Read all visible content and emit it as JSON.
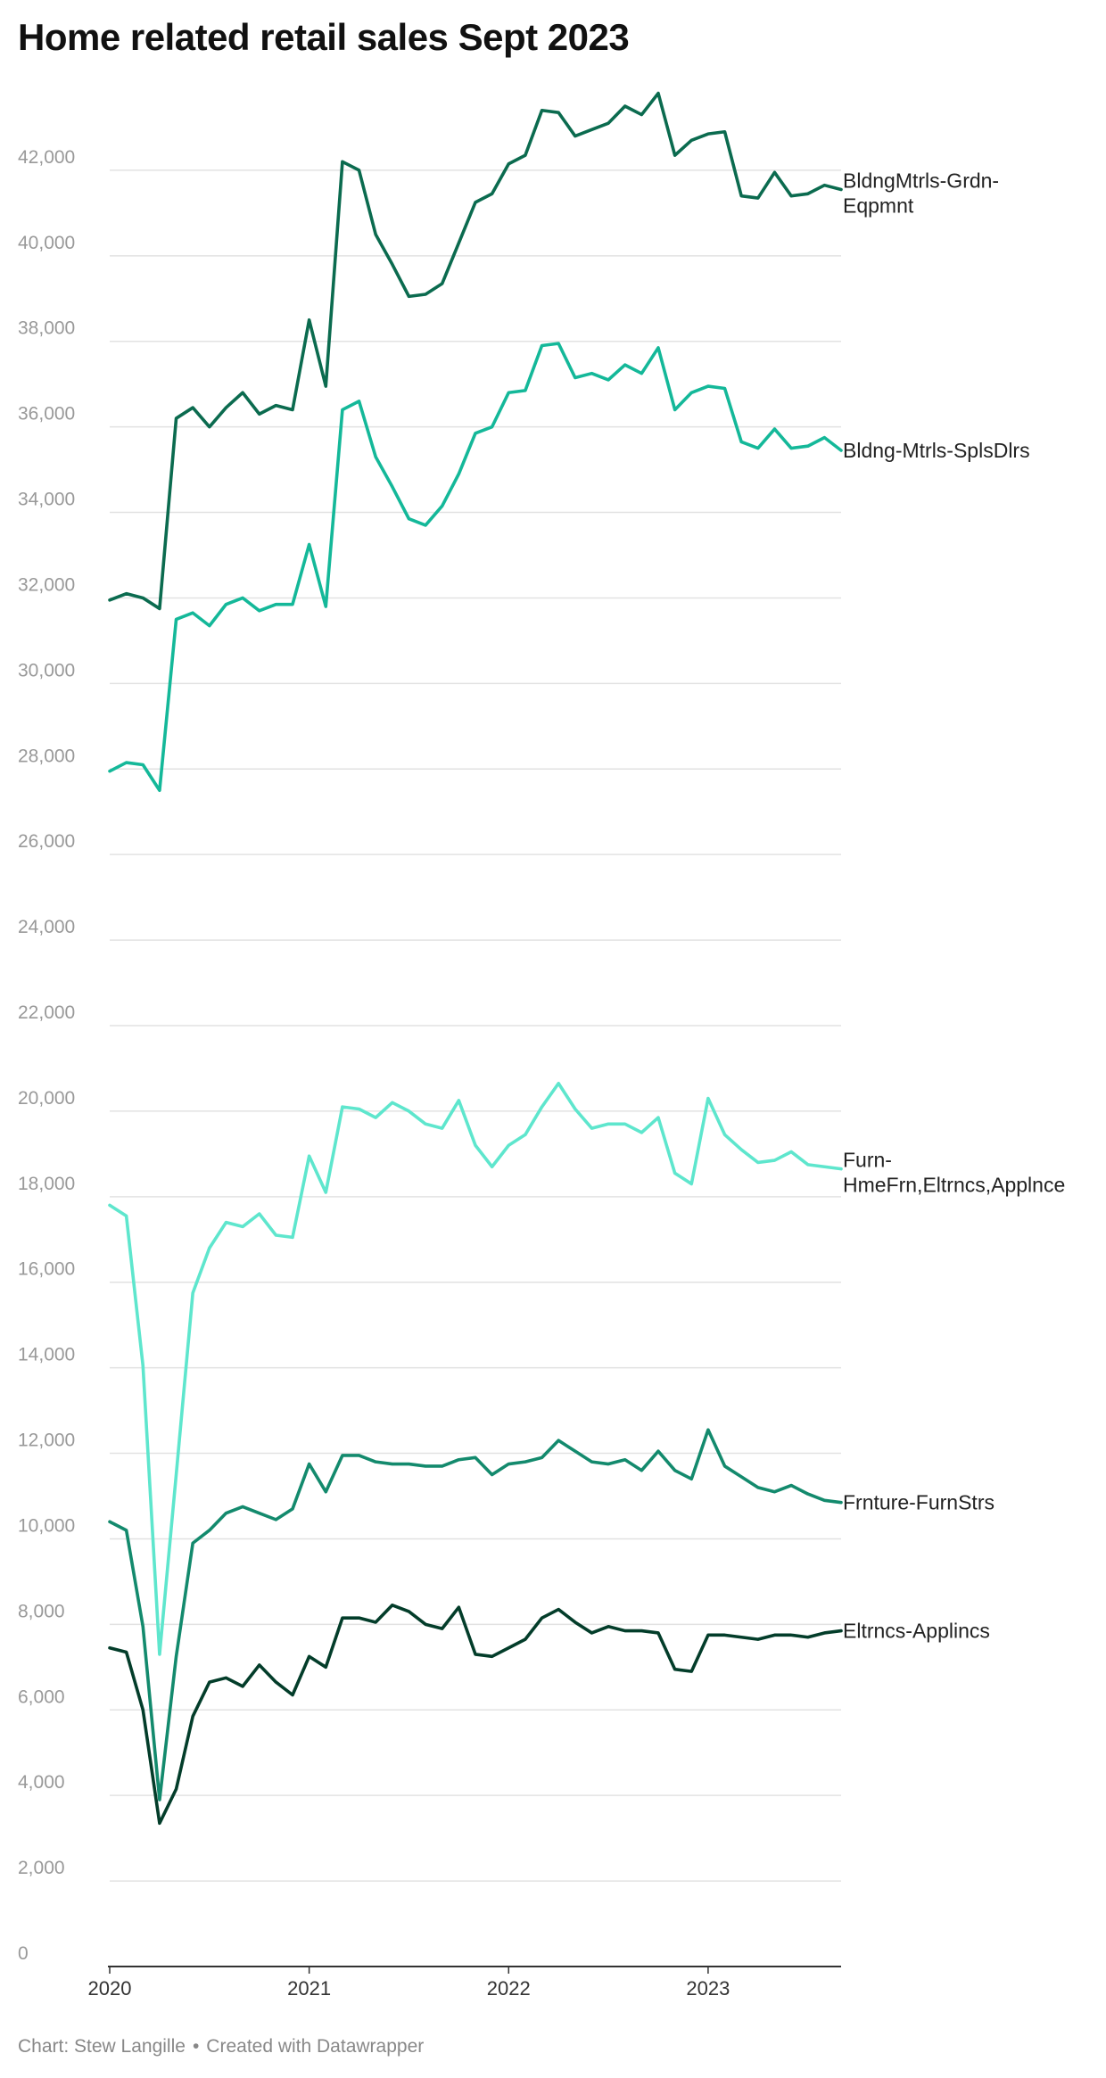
{
  "title": "Home related retail sales Sept 2023",
  "footer": {
    "source": "Chart: Stew Langille",
    "separator": "•",
    "credit": "Created with Datawrapper"
  },
  "chart_data": {
    "type": "line",
    "ylim": [
      0,
      44000
    ],
    "xlim": [
      "2020-01",
      "2023-09"
    ],
    "y_ticks": [
      0,
      2000,
      4000,
      6000,
      8000,
      10000,
      12000,
      14000,
      16000,
      18000,
      20000,
      22000,
      24000,
      26000,
      28000,
      30000,
      32000,
      34000,
      36000,
      38000,
      40000,
      42000
    ],
    "y_tick_labels": [
      "0",
      "2,000",
      "4,000",
      "6,000",
      "8,000",
      "10,000",
      "12,000",
      "14,000",
      "16,000",
      "18,000",
      "20,000",
      "22,000",
      "24,000",
      "26,000",
      "28,000",
      "30,000",
      "32,000",
      "34,000",
      "36,000",
      "38,000",
      "40,000",
      "42,000"
    ],
    "x_ticks": [
      "2020-01",
      "2021-01",
      "2022-01",
      "2023-01"
    ],
    "x_tick_labels": [
      "2020",
      "2021",
      "2022",
      "2023"
    ],
    "grid": true,
    "legend": "labels at line ends",
    "x": [
      "2020-01",
      "2020-02",
      "2020-03",
      "2020-04",
      "2020-05",
      "2020-06",
      "2020-07",
      "2020-08",
      "2020-09",
      "2020-10",
      "2020-11",
      "2020-12",
      "2021-01",
      "2021-02",
      "2021-03",
      "2021-04",
      "2021-05",
      "2021-06",
      "2021-07",
      "2021-08",
      "2021-09",
      "2021-10",
      "2021-11",
      "2021-12",
      "2022-01",
      "2022-02",
      "2022-03",
      "2022-04",
      "2022-05",
      "2022-06",
      "2022-07",
      "2022-08",
      "2022-09",
      "2022-10",
      "2022-11",
      "2022-12",
      "2023-01",
      "2023-02",
      "2023-03",
      "2023-04",
      "2023-05",
      "2023-06",
      "2023-07",
      "2023-08",
      "2023-09"
    ],
    "series": [
      {
        "name": "BldngMtrls-Grdn-Eqpmnt",
        "label_lines": [
          "BldngMtrls-Grdn-",
          "Eqpmnt"
        ],
        "color": "#0b6b4f",
        "values": [
          31950,
          32100,
          32000,
          31750,
          36200,
          36450,
          36000,
          36450,
          36800,
          36300,
          36500,
          36400,
          38500,
          36950,
          42200,
          42000,
          40500,
          39800,
          39050,
          39100,
          39350,
          40300,
          41250,
          41450,
          42150,
          42350,
          43400,
          43350,
          42800,
          42950,
          43100,
          43500,
          43300,
          43800,
          42350,
          42700,
          42850,
          42900,
          41400,
          41350,
          41950,
          41400,
          41450,
          41650,
          41550
        ]
      },
      {
        "name": "Bldng-Mtrls-SplsDlrs",
        "label_lines": [
          "Bldng-Mtrls-SplsDlrs"
        ],
        "color": "#14b899",
        "values": [
          27950,
          28150,
          28100,
          27500,
          31500,
          31650,
          31350,
          31850,
          32000,
          31700,
          31850,
          31850,
          33250,
          31800,
          36400,
          36600,
          35300,
          34600,
          33850,
          33700,
          34150,
          34900,
          35850,
          36000,
          36800,
          36850,
          37900,
          37950,
          37150,
          37250,
          37100,
          37450,
          37250,
          37850,
          36400,
          36800,
          36950,
          36900,
          35650,
          35500,
          35950,
          35500,
          35550,
          35750,
          35450
        ]
      },
      {
        "name": "Furn-HmeFrn,Eltrncs,Applnce",
        "label_lines": [
          "Furn-",
          "HmeFrn,Eltrncs,Applnce"
        ],
        "color": "#5ee6cd",
        "values": [
          17800,
          17550,
          14050,
          7300,
          11500,
          15750,
          16800,
          17400,
          17300,
          17600,
          17100,
          17050,
          18950,
          18100,
          20100,
          20050,
          19850,
          20200,
          20000,
          19700,
          19600,
          20250,
          19200,
          18700,
          19200,
          19450,
          20100,
          20650,
          20050,
          19600,
          19700,
          19700,
          19500,
          19850,
          18550,
          18300,
          20300,
          19450,
          19100,
          18800,
          18850,
          19050,
          18750,
          18700,
          18650
        ]
      },
      {
        "name": "Frnture-FurnStrs",
        "label_lines": [
          "Frnture-FurnStrs"
        ],
        "color": "#138a6d",
        "values": [
          10400,
          10200,
          7950,
          3900,
          7250,
          9900,
          10200,
          10600,
          10750,
          10600,
          10450,
          10700,
          11750,
          11100,
          11950,
          11950,
          11800,
          11750,
          11750,
          11700,
          11700,
          11850,
          11900,
          11500,
          11750,
          11800,
          11900,
          12300,
          12050,
          11800,
          11750,
          11850,
          11600,
          12050,
          11600,
          11400,
          12550,
          11700,
          11450,
          11200,
          11100,
          11250,
          11050,
          10900,
          10850
        ]
      },
      {
        "name": "Eltrncs-Applincs",
        "label_lines": [
          "Eltrncs-Applincs"
        ],
        "color": "#033d2a",
        "values": [
          7450,
          7350,
          6000,
          3350,
          4150,
          5850,
          6650,
          6750,
          6550,
          7050,
          6650,
          6350,
          7250,
          7000,
          8150,
          8150,
          8050,
          8450,
          8300,
          8000,
          7900,
          8400,
          7300,
          7250,
          7450,
          7650,
          8150,
          8350,
          8050,
          7800,
          7950,
          7850,
          7850,
          7800,
          6950,
          6900,
          7750,
          7750,
          7700,
          7650,
          7750,
          7750,
          7700,
          7800,
          7850
        ]
      }
    ]
  }
}
